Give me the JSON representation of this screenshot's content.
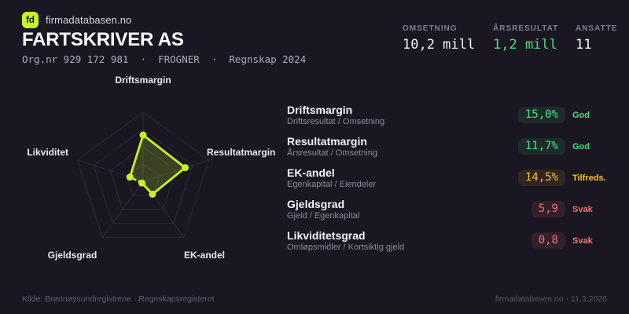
{
  "brand": {
    "logo_text": "fd",
    "site": "firmadatabasen.no"
  },
  "header": {
    "title": "FARTSKRIVER AS",
    "meta_line": "Org.nr 929 172 981  ·  FROGNER  ·  Regnskap 2024"
  },
  "stats": [
    {
      "label": "OMSETNING",
      "value": "10,2 mill",
      "color": "#f4f3f7"
    },
    {
      "label": "ÅRSRESULTAT",
      "value": "1,2 mill",
      "color": "#4ade80"
    },
    {
      "label": "ANSATTE",
      "value": "11",
      "color": "#f4f3f7"
    }
  ],
  "chart_data": {
    "type": "radar",
    "axes": [
      "Driftsmargin",
      "Resultatmargin",
      "EK-andel",
      "Gjeldsgrad",
      "Likviditet"
    ],
    "values": [
      0.67,
      0.64,
      0.23,
      0.03,
      0.2
    ],
    "axis_range": [
      0,
      1
    ],
    "rings": 4,
    "dashed_edges": [
      [
        3,
        4
      ]
    ],
    "stroke": "#c6f129",
    "fill": "rgba(197,240,44,0.20)",
    "grid": true,
    "legend": false
  },
  "metrics": [
    {
      "name": "Driftsmargin",
      "formula": "Driftsresultat / Omsetning",
      "value": "15,0%",
      "status": "God",
      "level": "good"
    },
    {
      "name": "Resultatmargin",
      "formula": "Årsresultat / Omsetning",
      "value": "11,7%",
      "status": "God",
      "level": "good"
    },
    {
      "name": "EK-andel",
      "formula": "Egenkapital / Eiendeler",
      "value": "14,5%",
      "status": "Tilfreds.",
      "level": "ok"
    },
    {
      "name": "Gjeldsgrad",
      "formula": "Gjeld / Egenkapital",
      "value": "5,9",
      "status": "Svak",
      "level": "weak"
    },
    {
      "name": "Likviditetsgrad",
      "formula": "Omløpsmidler / Kortsiktig gjeld",
      "value": "0,8",
      "status": "Svak",
      "level": "weak"
    }
  ],
  "footer": {
    "source": "Kilde: Brønnøysundregistrene · Regnskapsregisteret",
    "site_date": "firmadatabasen.no · 11.3.2026"
  },
  "colors": {
    "background": "#1a1722",
    "accent": "#c6f129",
    "good": "#4ade80",
    "ok": "#fbbf24",
    "weak": "#f87171"
  }
}
